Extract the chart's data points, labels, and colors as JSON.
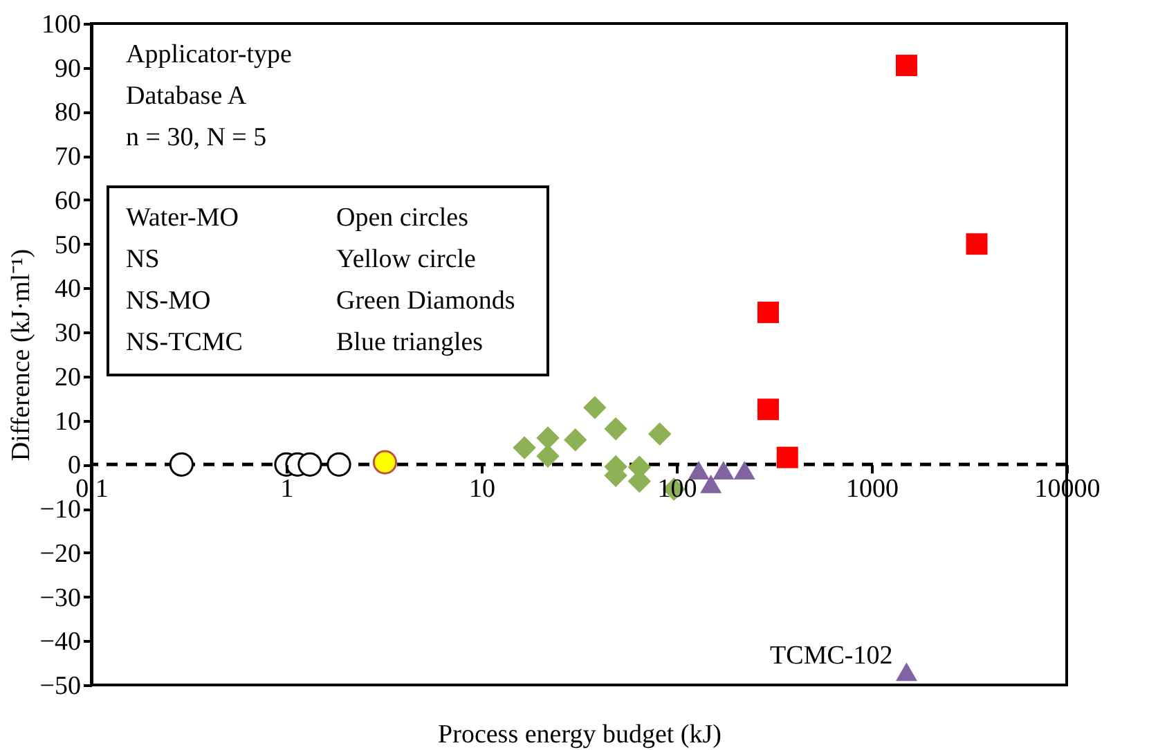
{
  "chart_data": {
    "type": "scatter",
    "xlabel": "Process energy budget (kJ)",
    "ylabel": "Difference (kJ·ml⁻¹)",
    "log": "x",
    "xlim": [
      0.1,
      10000
    ],
    "xticks": [
      0.1,
      1,
      10,
      100,
      1000,
      10000
    ],
    "ylim": [
      -50,
      100
    ],
    "yticks": [
      -50,
      -40,
      -30,
      -20,
      -10,
      0,
      10,
      20,
      30,
      40,
      50,
      60,
      70,
      80,
      90,
      100
    ],
    "grid": false,
    "ref_lines": [
      {
        "axis": "y",
        "value": 0,
        "label": null,
        "color": "#000000",
        "line_style": "dashed"
      }
    ],
    "annotations": [
      "Applicator-type",
      "Database A",
      "n = 30, N = 5",
      "Water-MO",
      "Open circles",
      "NS",
      "Yellow circle",
      "NS-MO",
      "Green Diamonds",
      "NS-TCMC",
      "Blue triangles",
      {
        "text": "TCMC-102",
        "x": 1510,
        "y": -47
      }
    ],
    "series": [
      {
        "color": "#ffffff",
        "marker": "circle",
        "x": [
          0.29,
          1.0,
          1.14,
          1.32,
          1.86
        ],
        "values": [
          0,
          0,
          0,
          0,
          0
        ]
      },
      {
        "color": "#ffff00",
        "marker": "circle",
        "x": [
          3.2
        ],
        "values": [
          0.5
        ]
      },
      {
        "color": "#8db255",
        "marker": "diamond",
        "x": [
          16.6,
          21.9,
          21.9,
          30.3,
          38.1,
          48.8,
          48.8,
          48.8,
          64.5,
          64.5,
          82,
          97
        ],
        "values": [
          3.8,
          6.0,
          1.9,
          5.6,
          12.9,
          8.1,
          -0.5,
          -2.5,
          -0.6,
          -3.8,
          6.9,
          -5.6
        ]
      },
      {
        "color": "#8064a2",
        "marker": "triangle",
        "x": [
          130,
          150,
          174,
          223,
          1510
        ],
        "values": [
          -1.3,
          -4.4,
          -1.3,
          -1.3,
          -47
        ]
      },
      {
        "color": "#ff0000",
        "marker": "square",
        "x": [
          295,
          295,
          370,
          1510,
          3460
        ],
        "values": [
          34.5,
          12.5,
          1.6,
          90.5,
          50
        ]
      }
    ]
  }
}
